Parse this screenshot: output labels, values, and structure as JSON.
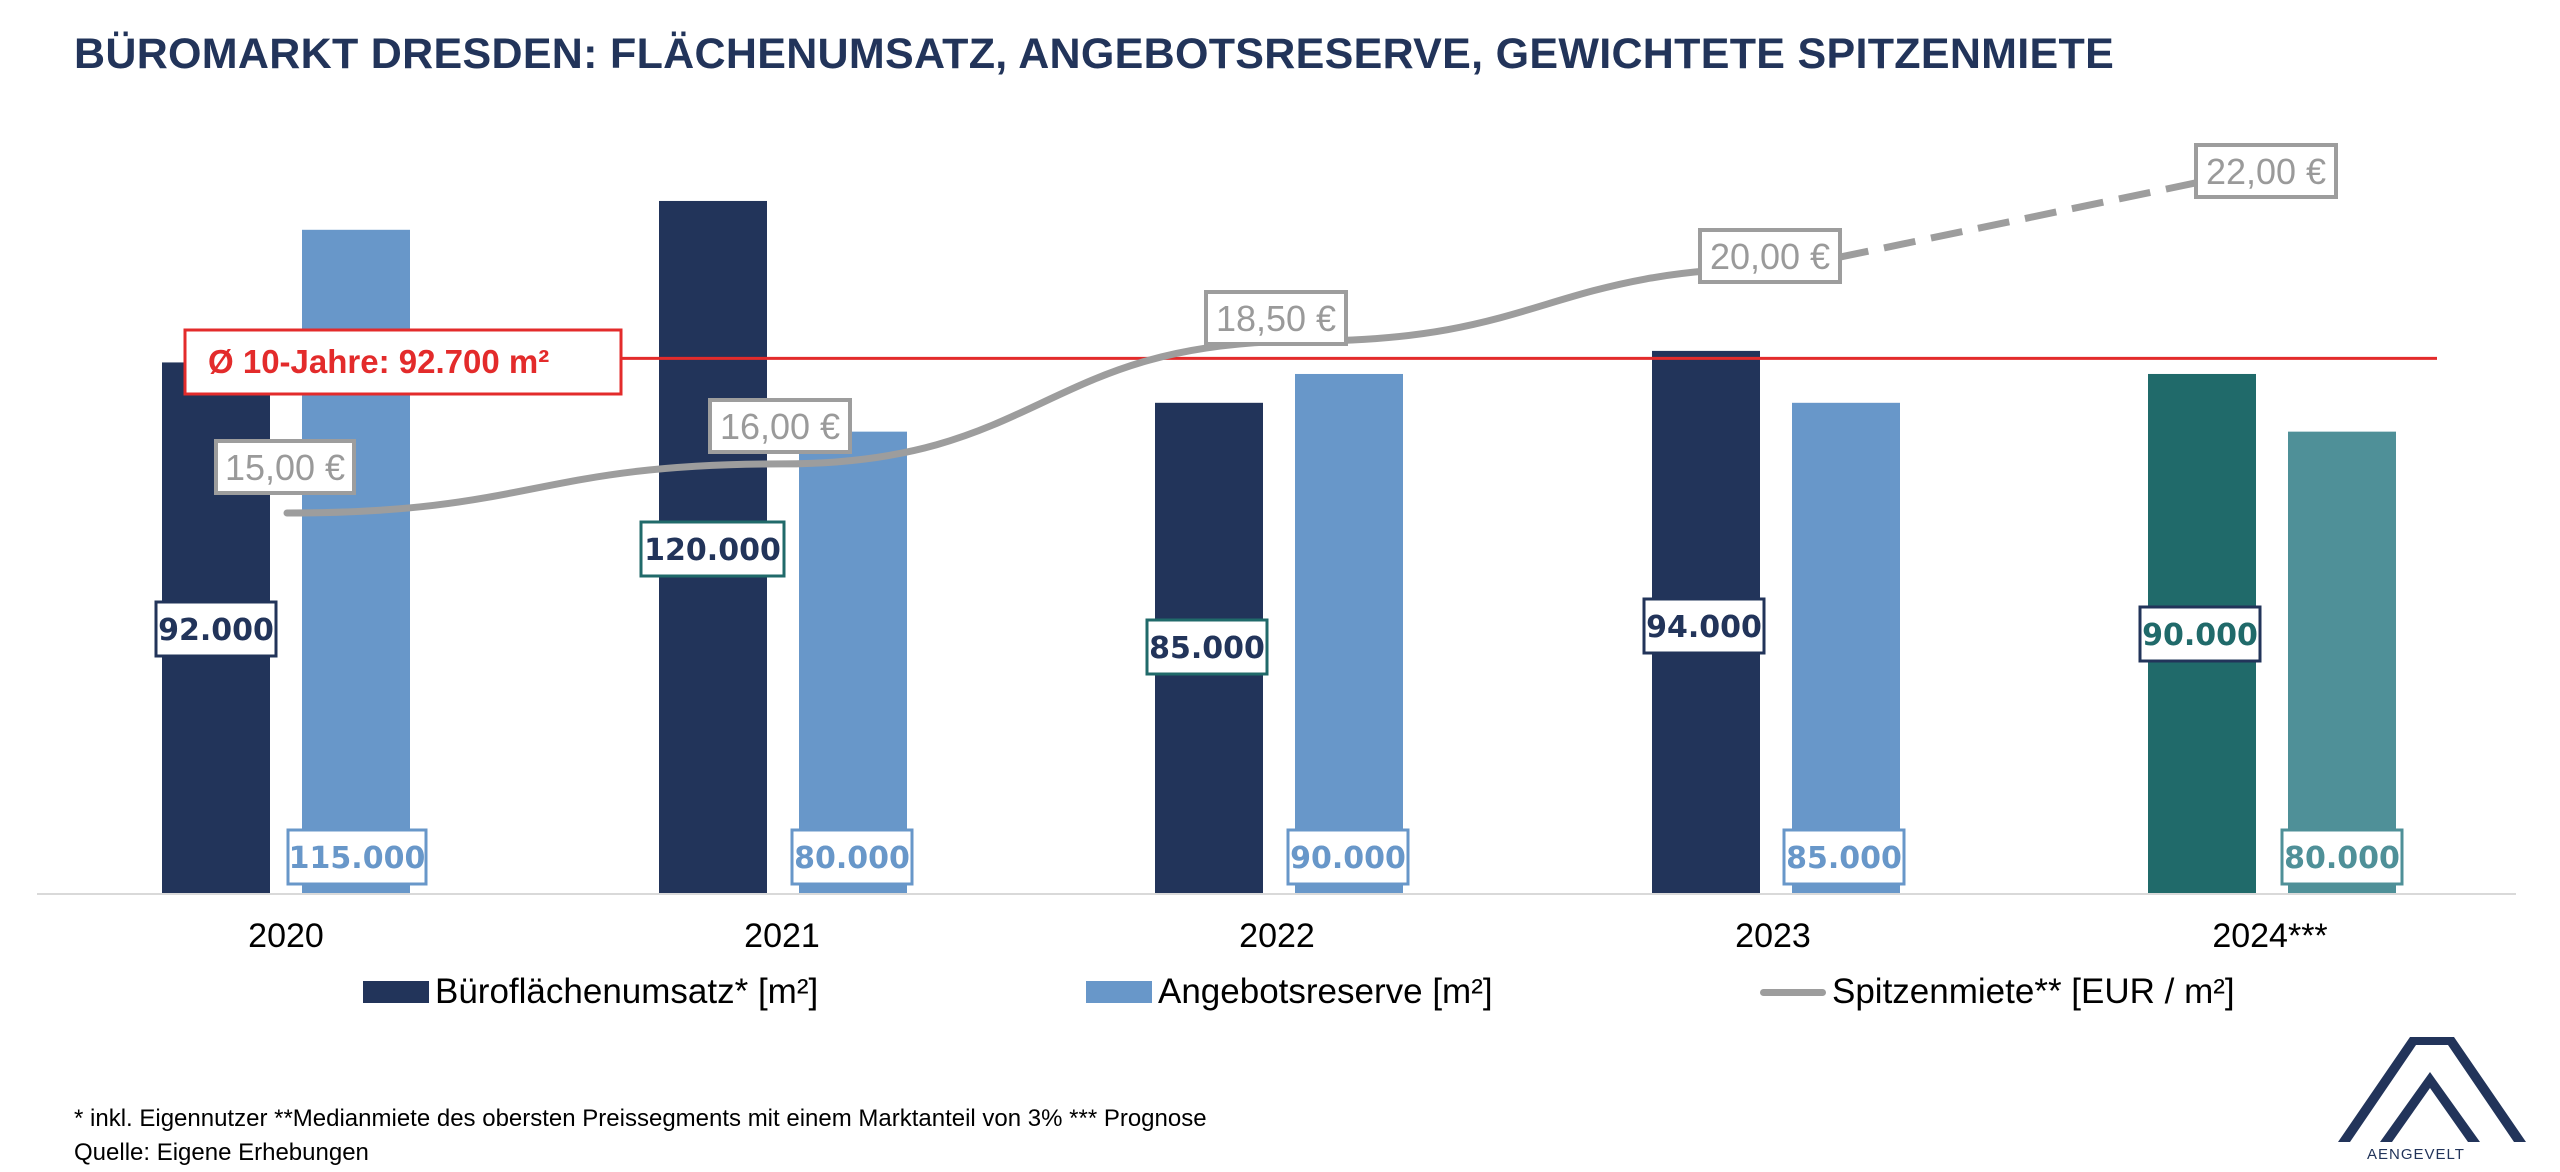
{
  "title": "BÜROMARKT DRESDEN: FLÄCHENUMSATZ, ANGEBOTSRESERVE, GEWICHTETE SPITZENMIETE",
  "chart_data": {
    "type": "bar",
    "categories": [
      "2020",
      "2021",
      "2022",
      "2023",
      "2024***"
    ],
    "series": [
      {
        "name": "Büroflächenumsatz* [m²]",
        "type": "bar",
        "values": [
          92000,
          120000,
          85000,
          94000,
          90000
        ],
        "labels": [
          "92.000",
          "120.000",
          "85.000",
          "94.000",
          "90.000"
        ],
        "colors": [
          "#22345a",
          "#22345a",
          "#22345a",
          "#22345a",
          "#206a6a"
        ]
      },
      {
        "name": "Angebotsreserve [m²]",
        "type": "bar",
        "values": [
          115000,
          80000,
          90000,
          85000,
          80000
        ],
        "labels": [
          "115.000",
          "80.000",
          "90.000",
          "85.000",
          "80.000"
        ],
        "colors": [
          "#6897c9",
          "#6897c9",
          "#6897c9",
          "#6897c9",
          "#4f9098"
        ]
      },
      {
        "name": "Spitzenmiete** [EUR / m²]",
        "type": "line",
        "values": [
          15.0,
          16.0,
          18.5,
          20.0,
          22.0
        ],
        "labels": [
          "15,00 €",
          "16,00 €",
          "18,50 €",
          "20,00 €",
          "22,00 €"
        ],
        "forecast_from_index": 3,
        "color": "#9d9d9d"
      }
    ],
    "reference_line": {
      "label": "Ø 10-Jahre: 92.700 m²",
      "value": 92700,
      "color": "#e32b2b"
    },
    "legend_position": "bottom",
    "grid": false
  },
  "legend": {
    "items": [
      {
        "label": "Büroflächenumsatz* [m²]",
        "color": "#22345a",
        "kind": "bar"
      },
      {
        "label": "Angebotsreserve [m²]",
        "color": "#6897c9",
        "kind": "bar"
      },
      {
        "label": "Spitzenmiete** [EUR / m²]",
        "color": "#9d9d9d",
        "kind": "line"
      }
    ]
  },
  "footnote": {
    "line1": "* inkl. Eigennutzer **Medianmiete des obersten Preissegments mit einem Marktanteil von 3% *** Prognose",
    "line2": "Quelle: Eigene Erhebungen"
  },
  "logo": {
    "text": "AENGEVELT",
    "icon": "aengevelt-logo-icon",
    "color": "#22345a"
  }
}
